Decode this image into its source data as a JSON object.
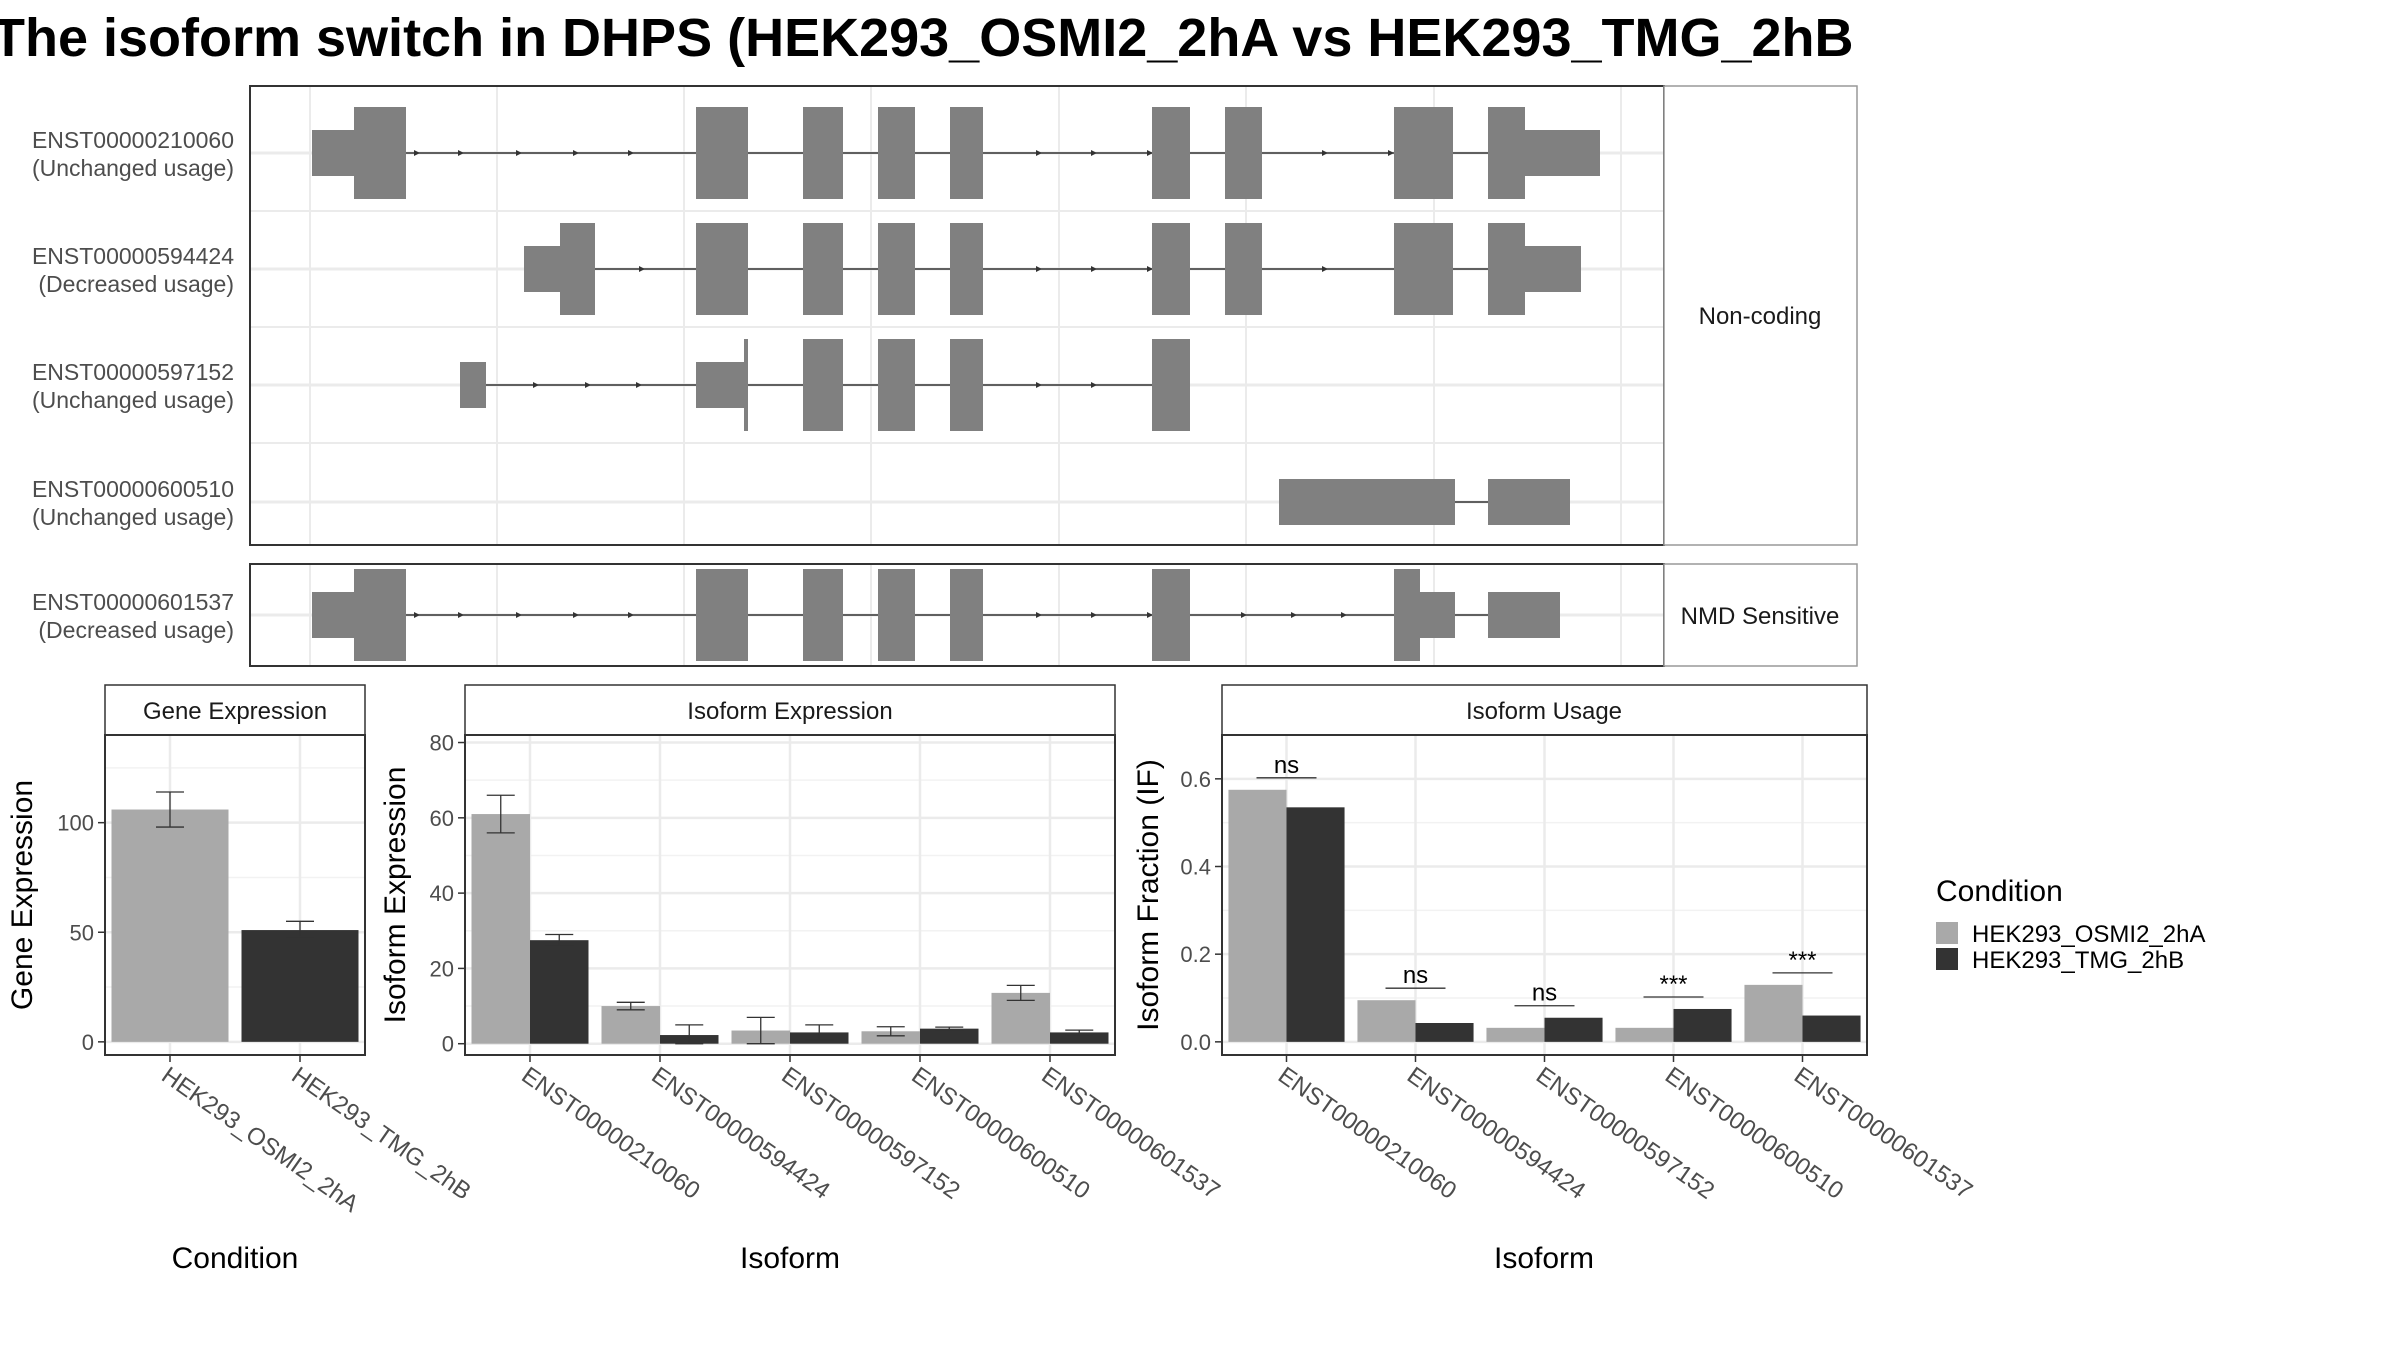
{
  "title": "The isoform switch in DHPS (HEK293_OSMI2_2hA vs HEK293_TMG_2hB",
  "colors": {
    "osmi": "#a9a9a9",
    "tmg": "#333333",
    "exon": "#808080",
    "panel_border": "#333333",
    "strip_border": "#999999",
    "grid": "#ebebeb"
  },
  "structure": {
    "facets": [
      {
        "label": "Non-coding",
        "isoforms": [
          0,
          1,
          2,
          3
        ]
      },
      {
        "label": "NMD Sensitive",
        "isoforms": [
          4
        ]
      }
    ],
    "isoforms": [
      {
        "id": "ENST00000210060",
        "usage": "(Unchanged usage)",
        "exons": [
          [
            312,
            354,
            0
          ],
          [
            354,
            406,
            1
          ],
          [
            696,
            748,
            1
          ],
          [
            803,
            843,
            1
          ],
          [
            878,
            915,
            1
          ],
          [
            950,
            983,
            1
          ],
          [
            1152,
            1190,
            1
          ],
          [
            1225,
            1262,
            1
          ],
          [
            1394,
            1453,
            1
          ],
          [
            1488,
            1525,
            1
          ],
          [
            1525,
            1600,
            0
          ]
        ],
        "arrows": [
          419,
          463,
          521,
          578,
          633,
          1041,
          1096,
          1152,
          1327,
          1393
        ]
      },
      {
        "id": "ENST00000594424",
        "usage": "(Decreased usage)",
        "exons": [
          [
            524,
            560,
            0
          ],
          [
            560,
            595,
            1
          ],
          [
            696,
            748,
            1
          ],
          [
            803,
            843,
            1
          ],
          [
            878,
            915,
            1
          ],
          [
            950,
            983,
            1
          ],
          [
            1152,
            1190,
            1
          ],
          [
            1225,
            1262,
            1
          ],
          [
            1394,
            1453,
            1
          ],
          [
            1488,
            1525,
            1
          ],
          [
            1525,
            1581,
            0
          ]
        ],
        "arrows": [
          644,
          1041,
          1096,
          1152,
          1327
        ]
      },
      {
        "id": "ENST00000597152",
        "usage": "(Unchanged usage)",
        "exons": [
          [
            460,
            486,
            0
          ],
          [
            696,
            746,
            0
          ],
          [
            803,
            843,
            1
          ],
          [
            878,
            915,
            1
          ],
          [
            950,
            983,
            1
          ],
          [
            1152,
            1190,
            1
          ]
        ],
        "tick": 746,
        "arrows": [
          538,
          590,
          641,
          1041,
          1096
        ]
      },
      {
        "id": "ENST00000600510",
        "usage": "(Unchanged usage)",
        "exons": [
          [
            1279,
            1455,
            0
          ],
          [
            1488,
            1570,
            0
          ]
        ],
        "arrows": []
      },
      {
        "id": "ENST00000601537",
        "usage": "(Decreased usage)",
        "exons": [
          [
            312,
            354,
            0
          ],
          [
            354,
            406,
            1
          ],
          [
            696,
            748,
            1
          ],
          [
            803,
            843,
            1
          ],
          [
            878,
            915,
            1
          ],
          [
            950,
            983,
            1
          ],
          [
            1152,
            1190,
            1
          ],
          [
            1394,
            1420,
            1
          ],
          [
            1420,
            1455,
            0
          ],
          [
            1488,
            1560,
            0
          ]
        ],
        "arrows": [
          419,
          463,
          521,
          578,
          633,
          1041,
          1096,
          1152,
          1246,
          1296,
          1346
        ]
      }
    ]
  },
  "panels": {
    "gene_strip": "Gene Expression",
    "iso_expr_strip": "Isoform Expression",
    "iso_usage_strip": "Isoform Usage",
    "gene_ylabel": "Gene Expression",
    "gene_xlabel": "Condition",
    "iso_expr_ylabel": "Isoform Expression",
    "iso_expr_xlabel": "Isoform",
    "iso_usage_ylabel": "Isoform Fraction (IF)",
    "iso_usage_xlabel": "Isoform"
  },
  "legend": {
    "title": "Condition",
    "items": [
      "HEK293_OSMI2_2hA",
      "HEK293_TMG_2hB"
    ]
  },
  "chart_data": [
    {
      "type": "bar",
      "title": "Gene Expression",
      "xlabel": "Condition",
      "ylabel": "Gene Expression",
      "categories": [
        "HEK293_OSMI2_2hA",
        "HEK293_TMG_2hB"
      ],
      "values": [
        106,
        51
      ],
      "error_low": [
        98,
        48
      ],
      "error_high": [
        114,
        55
      ],
      "ylim": [
        -6,
        140
      ],
      "yticks": [
        0,
        50,
        100
      ]
    },
    {
      "type": "bar",
      "title": "Isoform Expression",
      "xlabel": "Isoform",
      "ylabel": "Isoform Expression",
      "categories": [
        "ENST00000210060",
        "ENST00000594424",
        "ENST00000597152",
        "ENST00000600510",
        "ENST00000601537"
      ],
      "series": [
        {
          "name": "HEK293_OSMI2_2hA",
          "values": [
            61,
            10,
            3.5,
            3.3,
            13.5
          ],
          "error_low": [
            56,
            9,
            0,
            2.1,
            11.5
          ],
          "error_high": [
            66,
            11,
            7,
            4.5,
            15.5
          ]
        },
        {
          "name": "HEK293_TMG_2hB",
          "values": [
            27.5,
            2.3,
            3,
            4,
            3
          ],
          "error_low": [
            26,
            0,
            1,
            3.6,
            2.4
          ],
          "error_high": [
            29,
            5,
            5,
            4.4,
            3.6
          ]
        }
      ],
      "ylim": [
        -3,
        82
      ],
      "yticks": [
        0,
        20,
        40,
        60,
        80
      ]
    },
    {
      "type": "bar",
      "title": "Isoform Usage",
      "xlabel": "Isoform",
      "ylabel": "Isoform Fraction (IF)",
      "categories": [
        "ENST00000210060",
        "ENST00000594424",
        "ENST00000597152",
        "ENST00000600510",
        "ENST00000601537"
      ],
      "series": [
        {
          "name": "HEK293_OSMI2_2hA",
          "values": [
            0.575,
            0.095,
            0.032,
            0.032,
            0.13
          ]
        },
        {
          "name": "HEK293_TMG_2hB",
          "values": [
            0.535,
            0.043,
            0.055,
            0.075,
            0.06
          ]
        }
      ],
      "significance": [
        "ns",
        "ns",
        "ns",
        "***",
        "***"
      ],
      "ylim": [
        -0.03,
        0.7
      ],
      "yticks": [
        0.0,
        0.2,
        0.4,
        0.6
      ],
      "ytick_labels": [
        "0.0",
        "0.2",
        "0.4",
        "0.6"
      ]
    }
  ]
}
